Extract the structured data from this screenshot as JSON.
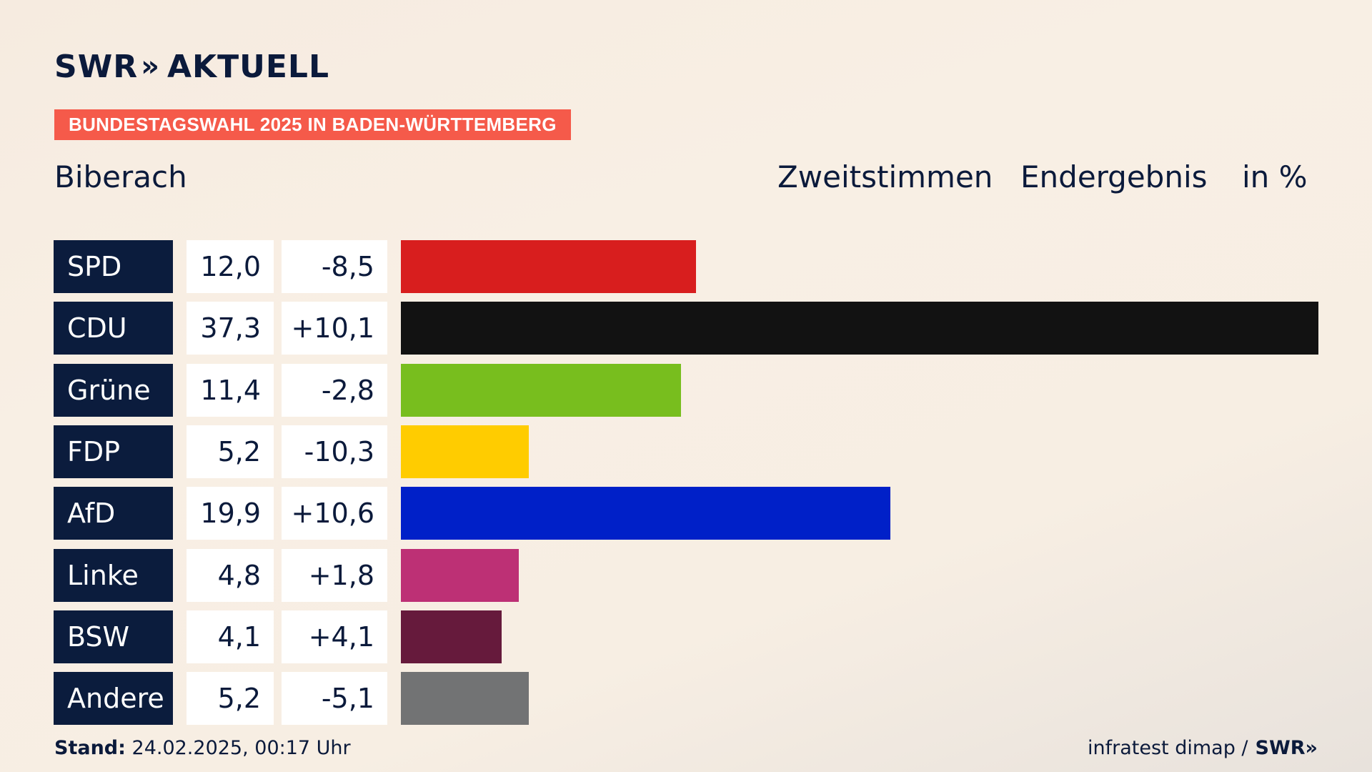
{
  "brand": {
    "logo_left": "SWR",
    "logo_chevrons": "»",
    "logo_right": "AKTUELL"
  },
  "banner": "BUNDESTAGSWAHL 2025 IN BADEN-WÜRTTEMBERG",
  "region": "Biberach",
  "header": {
    "vote_type": "Zweitstimmen",
    "result_type": "Endergebnis",
    "unit": "in %"
  },
  "footer": {
    "stand_label": "Stand:",
    "stand_value": "24.02.2025, 00:17 Uhr",
    "source": "infratest dimap /",
    "source_brand": "SWR»"
  },
  "colors": {
    "SPD": "#d81e1e",
    "CDU": "#121212",
    "Grüne": "#78be1e",
    "FDP": "#ffcc00",
    "AfD": "#0020c8",
    "Linke": "#bd3075",
    "BSW": "#661a3c",
    "Andere": "#727374"
  },
  "chart_data": {
    "type": "bar",
    "orientation": "horizontal",
    "categories": [
      "SPD",
      "CDU",
      "Grüne",
      "FDP",
      "AfD",
      "Linke",
      "BSW",
      "Andere"
    ],
    "values": [
      12.0,
      37.3,
      11.4,
      5.2,
      19.9,
      4.8,
      4.1,
      5.2
    ],
    "values_label": [
      "12,0",
      "37,3",
      "11,4",
      "5,2",
      "19,9",
      "4,8",
      "4,1",
      "5,2"
    ],
    "diff_label": [
      "-8,5",
      "+10,1",
      "-2,8",
      "-10,3",
      "+10,6",
      "+1,8",
      "+4,1",
      "-5,1"
    ],
    "diff": [
      -8.5,
      10.1,
      -2.8,
      -10.3,
      10.6,
      1.8,
      4.1,
      -5.1
    ],
    "xlim": [
      0,
      37.3
    ],
    "grid": false,
    "legend": "none"
  }
}
